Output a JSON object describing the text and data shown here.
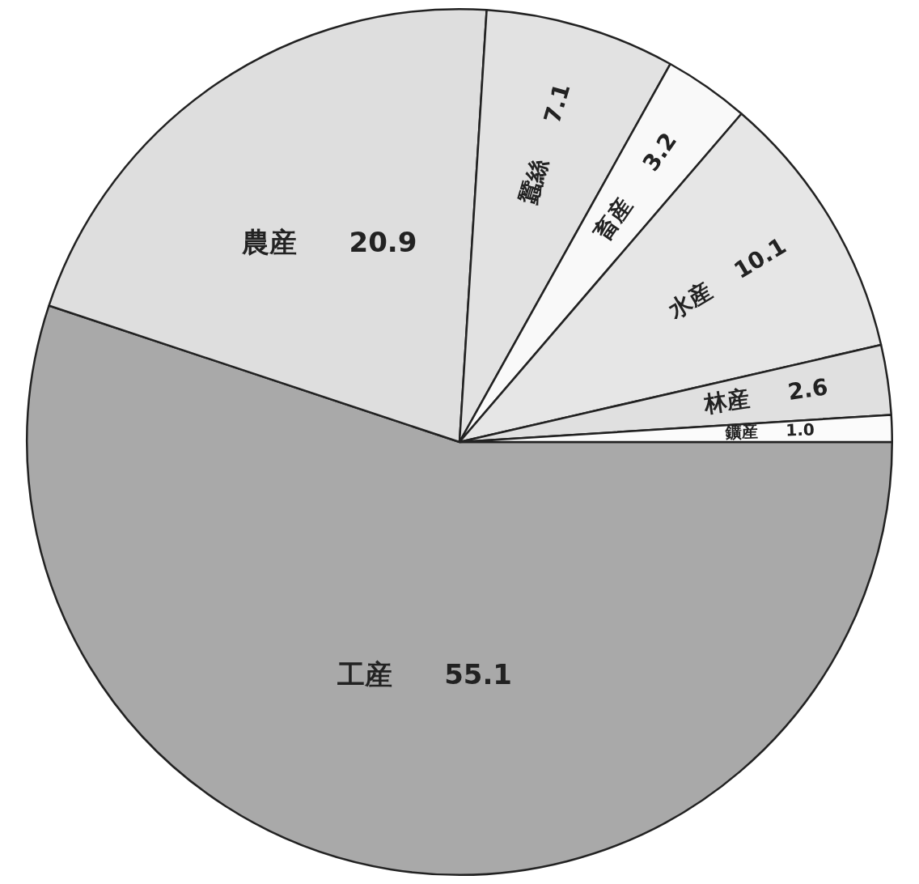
{
  "chart_data": {
    "type": "pie",
    "categories": [
      "工産",
      "農産",
      "蠶絲",
      "畜産",
      "水産",
      "林産",
      "鑛産"
    ],
    "values": [
      55.1,
      20.9,
      7.1,
      3.2,
      10.1,
      2.6,
      1.0
    ],
    "value_labels": [
      "55.1",
      "20.9",
      "7.1",
      "3.2",
      "10.1",
      "2.6",
      "1.0"
    ],
    "colors": [
      "#a9a9a9",
      "#dedede",
      "#e2e2e2",
      "#f9f9f9",
      "#e6e6e6",
      "#e0e0e0",
      "#fbfbfb"
    ]
  }
}
